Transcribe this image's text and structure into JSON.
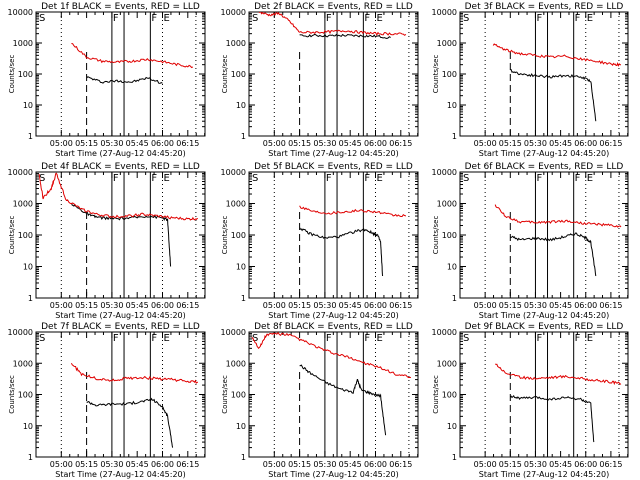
{
  "figure": {
    "xlabel": "Start Time (27-Aug-12 04:45:20)",
    "ylabel": "Counts/sec",
    "x_tick_labels": [
      "05:00",
      "05:15",
      "05:30",
      "05:45",
      "06:00",
      "06:15"
    ],
    "y_tick_labels": [
      "1",
      "10",
      "100",
      "1000",
      "10000"
    ],
    "series_colors": {
      "events": "#000000",
      "lld": "#e00000"
    }
  },
  "chart_data": [
    {
      "type": "line",
      "title": "Det 1f BLACK = Events, RED = LLD",
      "xlim": [
        4.75,
        6.42
      ],
      "ylim": [
        1,
        10000
      ],
      "yscale": "log",
      "markers": {
        "dotted": [
          5.0,
          6.0,
          6.33
        ],
        "dashed": [
          5.25
        ],
        "solid": [
          5.5,
          5.62,
          5.88
        ],
        "letters": [
          {
            "text": "S",
            "x": 4.77
          },
          {
            "text": "F",
            "x": 5.5
          },
          {
            "text": "F",
            "x": 5.88
          },
          {
            "text": "E",
            "x": 6.0
          }
        ]
      },
      "series": [
        {
          "key": "events",
          "x": [
            5.25,
            5.4,
            5.55,
            5.7,
            5.85,
            6.0
          ],
          "y": [
            80,
            55,
            60,
            55,
            75,
            50
          ]
        },
        {
          "key": "lld",
          "x": [
            5.1,
            5.25,
            5.4,
            5.55,
            5.7,
            5.85,
            6.0,
            6.15,
            6.3
          ],
          "y": [
            1000,
            350,
            260,
            240,
            260,
            300,
            250,
            200,
            170
          ]
        }
      ]
    },
    {
      "type": "line",
      "title": "Det 2f BLACK = Events, RED = LLD",
      "xlim": [
        4.75,
        6.42
      ],
      "ylim": [
        1,
        10000
      ],
      "yscale": "log",
      "markers": {
        "dotted": [
          5.0,
          6.0,
          6.33
        ],
        "dashed": [
          5.25
        ],
        "solid": [
          5.5,
          5.62,
          5.88
        ],
        "letters": [
          {
            "text": "S",
            "x": 4.77
          },
          {
            "text": "F",
            "x": 5.5
          },
          {
            "text": "F",
            "x": 5.88
          },
          {
            "text": "E",
            "x": 6.0
          }
        ]
      },
      "series": [
        {
          "key": "events",
          "x": [
            5.25,
            5.4,
            5.55,
            5.7,
            5.85,
            6.0,
            6.15
          ],
          "y": [
            1700,
            1750,
            1700,
            1750,
            1700,
            1650,
            1500
          ]
        },
        {
          "key": "lld",
          "x": [
            4.85,
            4.95,
            5.05,
            5.15,
            5.25,
            5.4,
            5.55,
            5.7,
            5.85,
            6.0,
            6.15,
            6.3
          ],
          "y": [
            10000,
            8000,
            9000,
            5000,
            2200,
            2200,
            2300,
            2500,
            2200,
            2000,
            2000,
            1900
          ]
        }
      ]
    },
    {
      "type": "line",
      "title": "Det 3f BLACK = Events, RED = LLD",
      "xlim": [
        4.75,
        6.42
      ],
      "ylim": [
        1,
        10000
      ],
      "yscale": "log",
      "markers": {
        "dotted": [
          5.0,
          6.0,
          6.33
        ],
        "dashed": [
          5.25
        ],
        "solid": [
          5.5,
          5.62,
          5.88
        ],
        "letters": [
          {
            "text": "S",
            "x": 4.77
          },
          {
            "text": "F",
            "x": 5.5
          },
          {
            "text": "F",
            "x": 5.88
          },
          {
            "text": "E",
            "x": 6.0
          }
        ]
      },
      "series": [
        {
          "key": "events",
          "x": [
            5.25,
            5.35,
            5.5,
            5.65,
            5.8,
            5.95,
            6.05,
            6.1
          ],
          "y": [
            130,
            100,
            90,
            80,
            90,
            80,
            60,
            3
          ]
        },
        {
          "key": "lld",
          "x": [
            5.08,
            5.2,
            5.35,
            5.5,
            5.65,
            5.8,
            5.95,
            6.1,
            6.25,
            6.35
          ],
          "y": [
            900,
            600,
            450,
            400,
            350,
            380,
            300,
            260,
            210,
            200
          ]
        }
      ]
    },
    {
      "type": "line",
      "title": "Det 4f BLACK = Events, RED = LLD",
      "xlim": [
        4.75,
        6.42
      ],
      "ylim": [
        1,
        10000
      ],
      "yscale": "log",
      "markers": {
        "dotted": [
          5.0,
          6.0,
          6.33
        ],
        "dashed": [
          5.25
        ],
        "solid": [
          5.5,
          5.62,
          5.88
        ],
        "letters": [
          {
            "text": "S",
            "x": 4.77
          },
          {
            "text": "F",
            "x": 5.5
          },
          {
            "text": "F",
            "x": 5.88
          },
          {
            "text": "E",
            "x": 6.0
          }
        ]
      },
      "series": [
        {
          "key": "events",
          "x": [
            5.1,
            5.2,
            5.3,
            5.4,
            5.55,
            5.7,
            5.85,
            6.0,
            6.05,
            6.08
          ],
          "y": [
            1000,
            600,
            400,
            350,
            330,
            350,
            400,
            350,
            300,
            10
          ]
        },
        {
          "key": "lld",
          "x": [
            4.78,
            4.82,
            4.9,
            4.95,
            5.05,
            5.2,
            5.35,
            5.5,
            5.65,
            5.8,
            5.95,
            6.1,
            6.25,
            6.35
          ],
          "y": [
            8000,
            1500,
            3000,
            9000,
            1300,
            650,
            450,
            380,
            400,
            450,
            400,
            350,
            320,
            330
          ]
        }
      ]
    },
    {
      "type": "line",
      "title": "Det 5f BLACK = Events, RED = LLD",
      "xlim": [
        4.75,
        6.42
      ],
      "ylim": [
        1,
        10000
      ],
      "yscale": "log",
      "markers": {
        "dotted": [
          5.0,
          6.0,
          6.33
        ],
        "dashed": [
          5.25
        ],
        "solid": [
          5.5,
          5.62,
          5.88
        ],
        "letters": [
          {
            "text": "S",
            "x": 4.77
          },
          {
            "text": "F",
            "x": 5.5
          },
          {
            "text": "F",
            "x": 5.88
          },
          {
            "text": "E",
            "x": 6.0
          }
        ]
      },
      "series": [
        {
          "key": "events",
          "x": [
            5.25,
            5.35,
            5.5,
            5.65,
            5.8,
            5.9,
            5.98,
            6.02,
            6.05,
            6.07
          ],
          "y": [
            170,
            110,
            80,
            90,
            130,
            150,
            110,
            100,
            60,
            5
          ]
        },
        {
          "key": "lld",
          "x": [
            5.25,
            5.4,
            5.55,
            5.7,
            5.85,
            6.0,
            6.15,
            6.3
          ],
          "y": [
            800,
            550,
            500,
            550,
            600,
            550,
            430,
            400
          ]
        }
      ]
    },
    {
      "type": "line",
      "title": "Det 6f BLACK = Events, RED = LLD",
      "xlim": [
        4.75,
        6.42
      ],
      "ylim": [
        1,
        10000
      ],
      "yscale": "log",
      "markers": {
        "dotted": [
          5.0,
          6.0,
          6.33
        ],
        "dashed": [
          5.25
        ],
        "solid": [
          5.5,
          5.62,
          5.88
        ],
        "letters": [
          {
            "text": "S",
            "x": 4.77
          },
          {
            "text": "F",
            "x": 5.5
          },
          {
            "text": "F",
            "x": 5.88
          },
          {
            "text": "E",
            "x": 6.0
          }
        ]
      },
      "series": [
        {
          "key": "events",
          "x": [
            5.25,
            5.35,
            5.5,
            5.65,
            5.8,
            5.9,
            6.0,
            6.05,
            6.1
          ],
          "y": [
            90,
            70,
            80,
            70,
            90,
            110,
            80,
            60,
            5
          ]
        },
        {
          "key": "lld",
          "x": [
            5.1,
            5.2,
            5.35,
            5.5,
            5.65,
            5.8,
            5.95,
            6.1,
            6.25,
            6.35
          ],
          "y": [
            900,
            400,
            260,
            250,
            260,
            280,
            240,
            220,
            200,
            180
          ]
        }
      ]
    },
    {
      "type": "line",
      "title": "Det 7f BLACK = Events, RED = LLD",
      "xlim": [
        4.75,
        6.42
      ],
      "ylim": [
        1,
        10000
      ],
      "yscale": "log",
      "markers": {
        "dotted": [
          5.0,
          6.0,
          6.33
        ],
        "dashed": [
          5.25
        ],
        "solid": [
          5.5,
          5.62,
          5.88
        ],
        "letters": [
          {
            "text": "S",
            "x": 4.77
          },
          {
            "text": "F",
            "x": 5.5
          },
          {
            "text": "F",
            "x": 5.88
          },
          {
            "text": "E",
            "x": 6.0
          }
        ]
      },
      "series": [
        {
          "key": "events",
          "x": [
            5.25,
            5.35,
            5.5,
            5.65,
            5.8,
            5.9,
            6.0,
            6.05,
            6.1
          ],
          "y": [
            60,
            45,
            50,
            50,
            60,
            70,
            40,
            20,
            2
          ]
        },
        {
          "key": "lld",
          "x": [
            5.1,
            5.2,
            5.35,
            5.5,
            5.65,
            5.8,
            5.95,
            6.1,
            6.25,
            6.35
          ],
          "y": [
            1000,
            450,
            320,
            280,
            330,
            350,
            320,
            300,
            260,
            250
          ]
        }
      ]
    },
    {
      "type": "line",
      "title": "Det 8f BLACK = Events, RED = LLD",
      "xlim": [
        4.75,
        6.42
      ],
      "ylim": [
        1,
        10000
      ],
      "yscale": "log",
      "markers": {
        "dotted": [
          5.0,
          6.0,
          6.33
        ],
        "dashed": [
          5.25
        ],
        "solid": [
          5.5,
          5.62,
          5.88
        ],
        "letters": [
          {
            "text": "S",
            "x": 4.77
          },
          {
            "text": "F",
            "x": 5.5
          },
          {
            "text": "F",
            "x": 5.88
          },
          {
            "text": "E",
            "x": 6.0
          }
        ]
      },
      "series": [
        {
          "key": "events",
          "x": [
            5.25,
            5.35,
            5.5,
            5.65,
            5.78,
            5.82,
            5.86,
            5.95,
            6.05,
            6.1
          ],
          "y": [
            900,
            500,
            250,
            150,
            120,
            300,
            140,
            110,
            90,
            5
          ]
        },
        {
          "key": "lld",
          "x": [
            4.78,
            4.85,
            4.92,
            5.0,
            5.15,
            5.3,
            5.45,
            5.6,
            5.75,
            5.9,
            6.05,
            6.2,
            6.35
          ],
          "y": [
            7000,
            3000,
            8000,
            9000,
            8000,
            5000,
            3000,
            2000,
            1500,
            1000,
            700,
            450,
            350
          ]
        }
      ]
    },
    {
      "type": "line",
      "title": "Det 9f BLACK = Events, RED = LLD",
      "xlim": [
        4.75,
        6.42
      ],
      "ylim": [
        1,
        10000
      ],
      "yscale": "log",
      "markers": {
        "dotted": [
          5.0,
          6.0,
          6.33
        ],
        "dashed": [
          5.25
        ],
        "solid": [
          5.5,
          5.62,
          5.88
        ],
        "letters": [
          {
            "text": "S",
            "x": 4.77
          },
          {
            "text": "F",
            "x": 5.5
          },
          {
            "text": "F",
            "x": 5.88
          },
          {
            "text": "E",
            "x": 6.0
          }
        ]
      },
      "series": [
        {
          "key": "events",
          "x": [
            5.25,
            5.35,
            5.5,
            5.65,
            5.8,
            5.95,
            6.05,
            6.08
          ],
          "y": [
            90,
            75,
            80,
            70,
            80,
            70,
            50,
            3
          ]
        },
        {
          "key": "lld",
          "x": [
            5.1,
            5.2,
            5.35,
            5.5,
            5.65,
            5.8,
            5.95,
            6.1,
            6.25,
            6.35
          ],
          "y": [
            1000,
            500,
            350,
            330,
            350,
            380,
            330,
            280,
            250,
            220
          ]
        }
      ]
    }
  ]
}
